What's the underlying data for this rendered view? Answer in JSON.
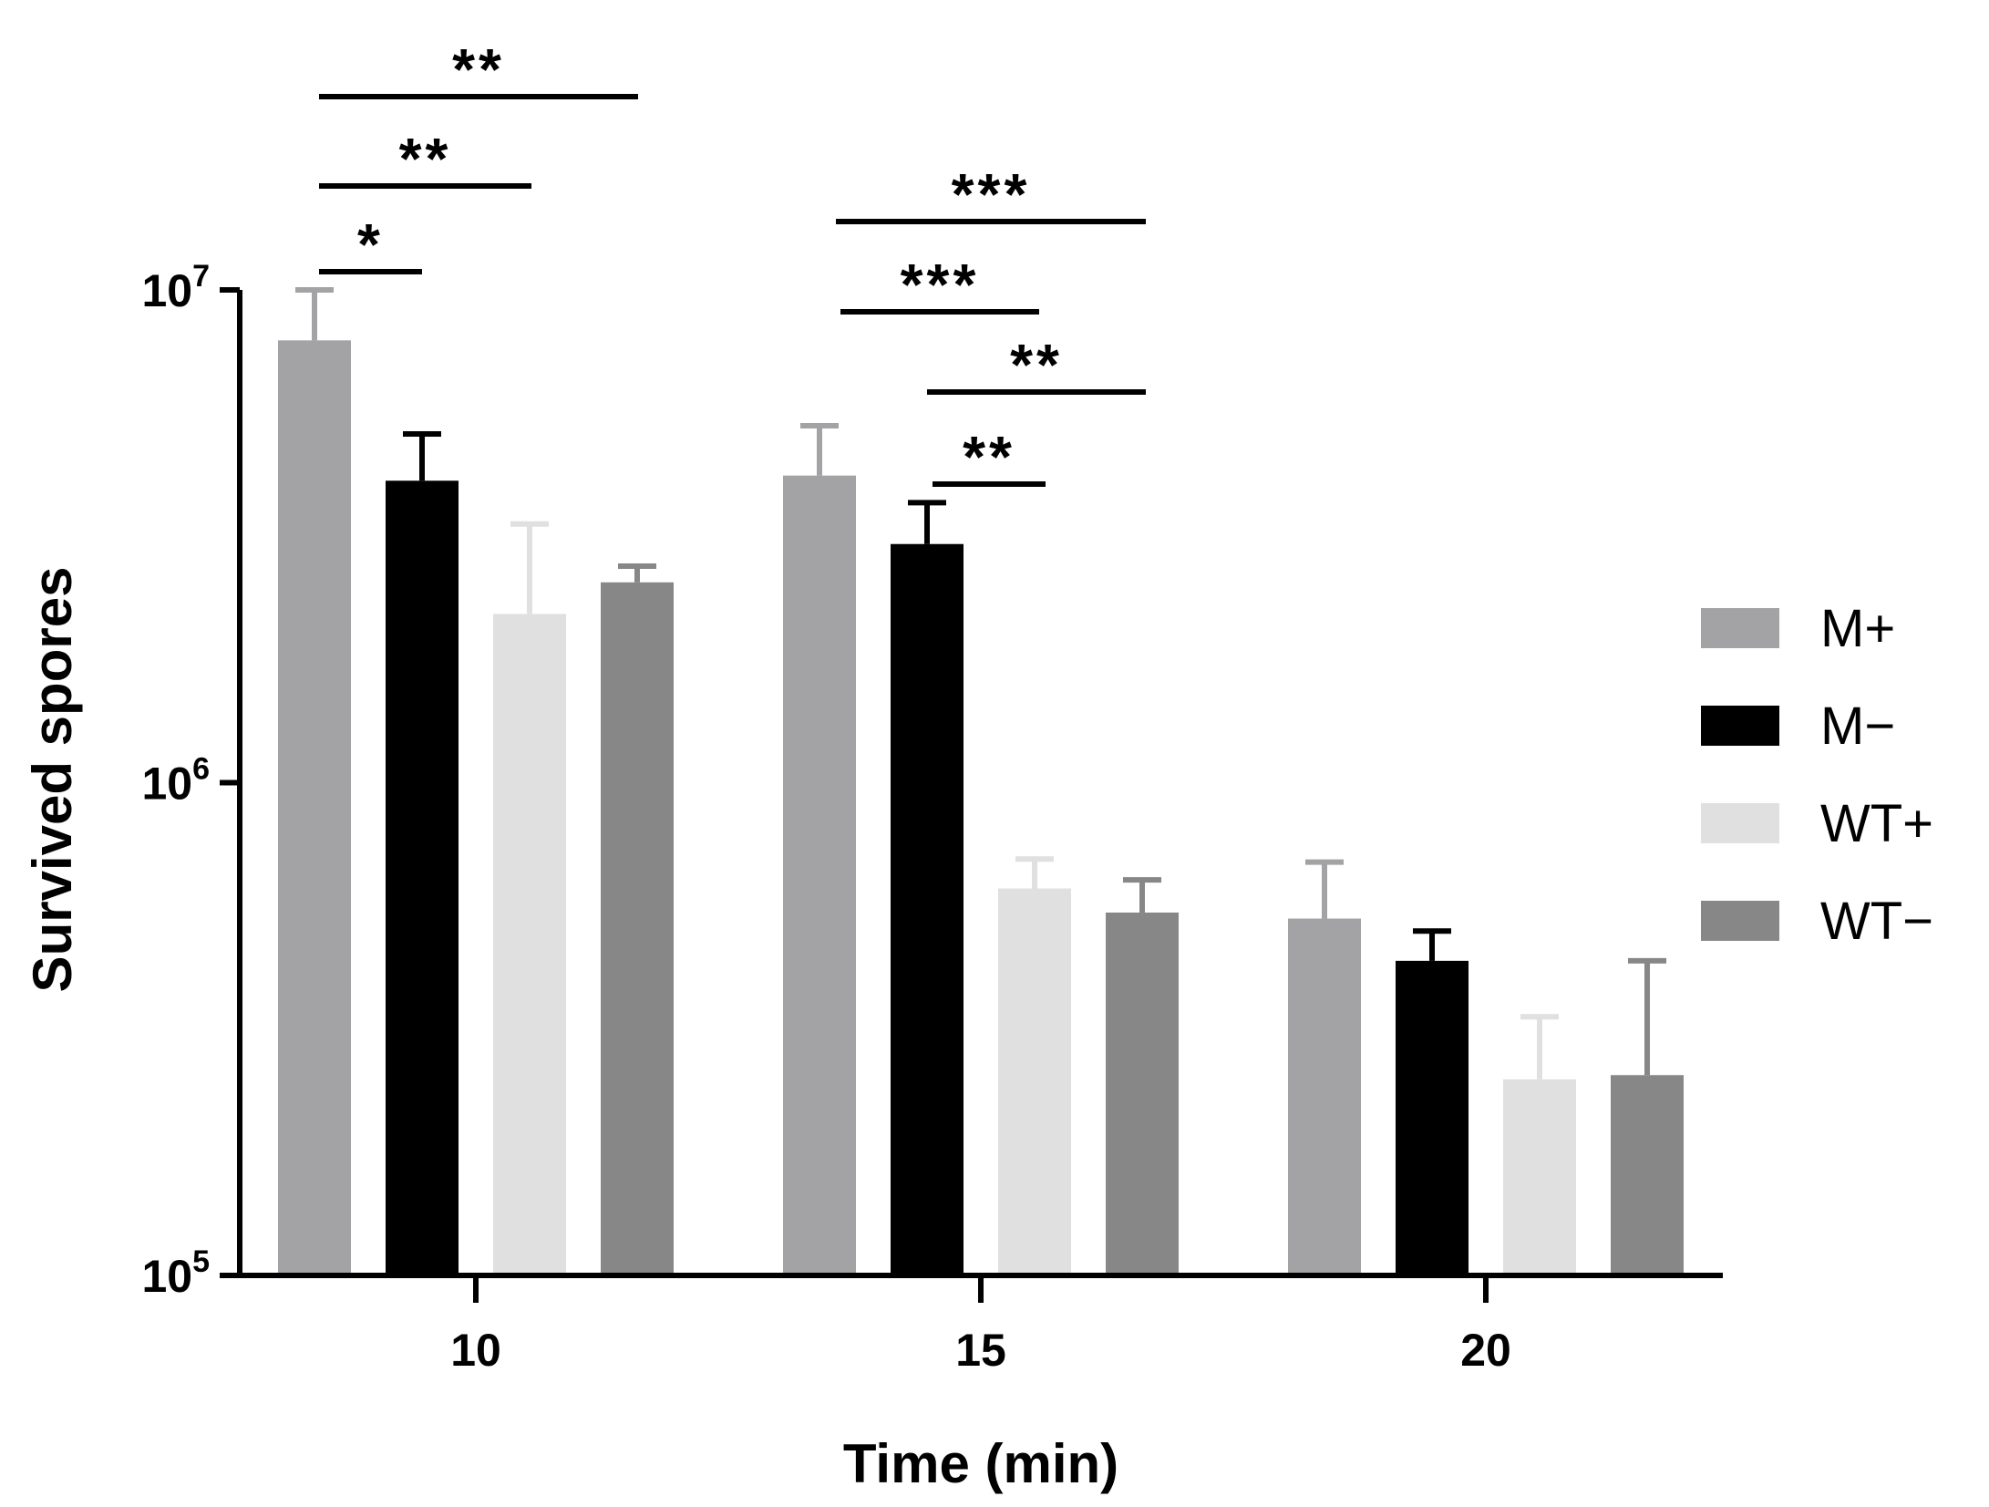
{
  "chart_data": {
    "type": "bar",
    "scale": "log",
    "title": "",
    "xlabel": "Time (min)",
    "ylabel": "Survived spores",
    "ylim": [
      100000,
      10000000
    ],
    "yticks": [
      {
        "value": 100000,
        "base": "10",
        "exp": "5"
      },
      {
        "value": 1000000,
        "base": "10",
        "exp": "6"
      },
      {
        "value": 10000000,
        "base": "10",
        "exp": "7"
      }
    ],
    "categories": [
      "10",
      "15",
      "20"
    ],
    "series": [
      {
        "name": "M+",
        "color": "#a3a3a6",
        "values": [
          7900000,
          4200000,
          530000
        ],
        "errors": [
          2100000,
          1100000,
          160000
        ]
      },
      {
        "name": "M−",
        "color": "#000000",
        "values": [
          4100000,
          3050000,
          435000
        ],
        "errors": [
          1000000,
          650000,
          65000
        ]
      },
      {
        "name": "WT+",
        "color": "#e0e0e0",
        "values": [
          2200000,
          610000,
          250000
        ],
        "errors": [
          1150000,
          90000,
          85000
        ]
      },
      {
        "name": "WT−",
        "color": "#878787",
        "values": [
          2550000,
          545000,
          255000
        ],
        "errors": [
          200000,
          90000,
          180000
        ]
      }
    ],
    "significance": [
      {
        "group": 0,
        "from_series": 0,
        "to_series": 1,
        "label": "*"
      },
      {
        "group": 0,
        "from_series": 0,
        "to_series": 2,
        "label": "**"
      },
      {
        "group": 0,
        "from_series": 0,
        "to_series": 3,
        "label": "**"
      },
      {
        "group": 1,
        "from_series": 1,
        "to_series": 2,
        "label": "**"
      },
      {
        "group": 1,
        "from_series": 1,
        "to_series": 3,
        "label": "**"
      },
      {
        "group": 1,
        "from_series": 0,
        "to_series": 2,
        "label": "***"
      },
      {
        "group": 1,
        "from_series": 0,
        "to_series": 3,
        "label": "***"
      }
    ],
    "legend": {
      "position": "right"
    }
  }
}
